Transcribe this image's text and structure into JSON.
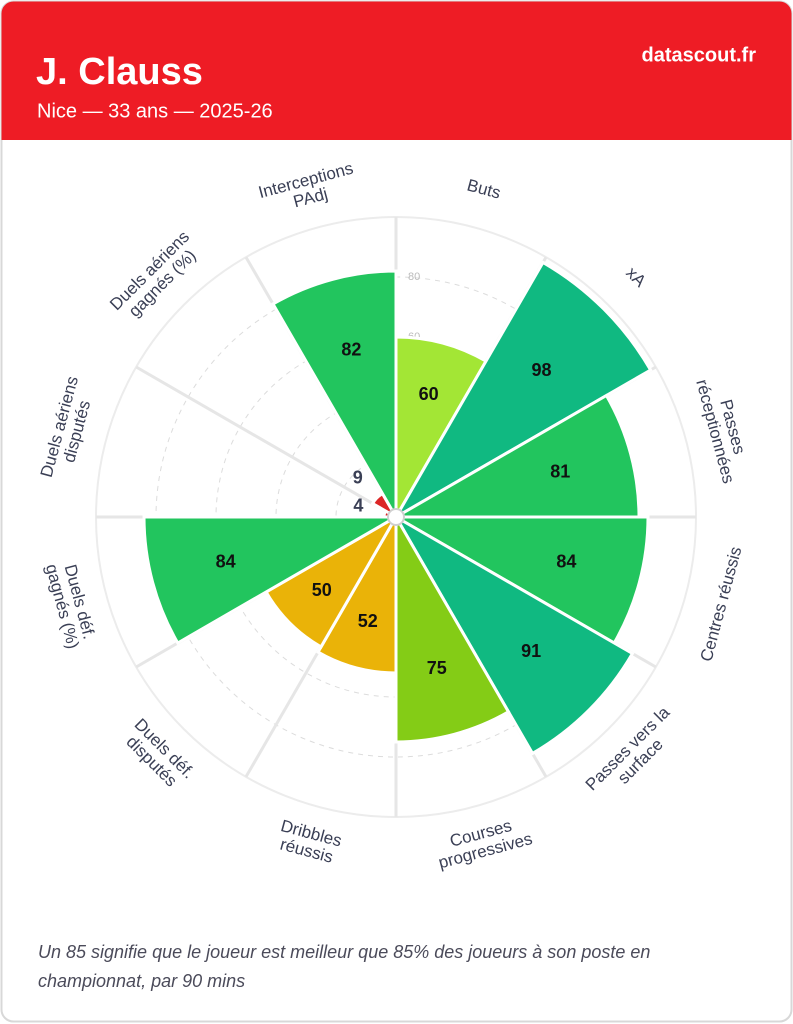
{
  "header": {
    "title": "J. Clauss",
    "subtitle": "Nice — 33 ans — 2025-26",
    "brand": "datascout.fr"
  },
  "chart_data": {
    "type": "polar-bar",
    "categories": [
      "Buts",
      "xA",
      "Passes\nréceptionnées",
      "Centres réussis",
      "Passes vers la\nsurface",
      "Courses\nprogressives",
      "Dribbles\nréussis",
      "Duels déf.\ndisputés",
      "Duels déf.\ngagnés (%)",
      "Duels aériens\ndisputés",
      "Duels aériens\ngagnés (%)",
      "Interceptions\nPAdj"
    ],
    "values": [
      60,
      98,
      81,
      84,
      91,
      75,
      52,
      50,
      84,
      4,
      9,
      82
    ],
    "colors": [
      "#a3e635",
      "#10b981",
      "#22c55e",
      "#22c55e",
      "#10b981",
      "#84cc16",
      "#eab308",
      "#eab308",
      "#22c55e",
      "#dc2626",
      "#dc2626",
      "#22c55e"
    ],
    "rlim": [
      0,
      100
    ],
    "rticks": [
      20,
      40,
      60,
      80
    ],
    "grid": true
  },
  "footer": {
    "note": "Un 85 signifie que le joueur est meilleur que 85% des joueurs à son poste en championnat, par 90 mins"
  }
}
